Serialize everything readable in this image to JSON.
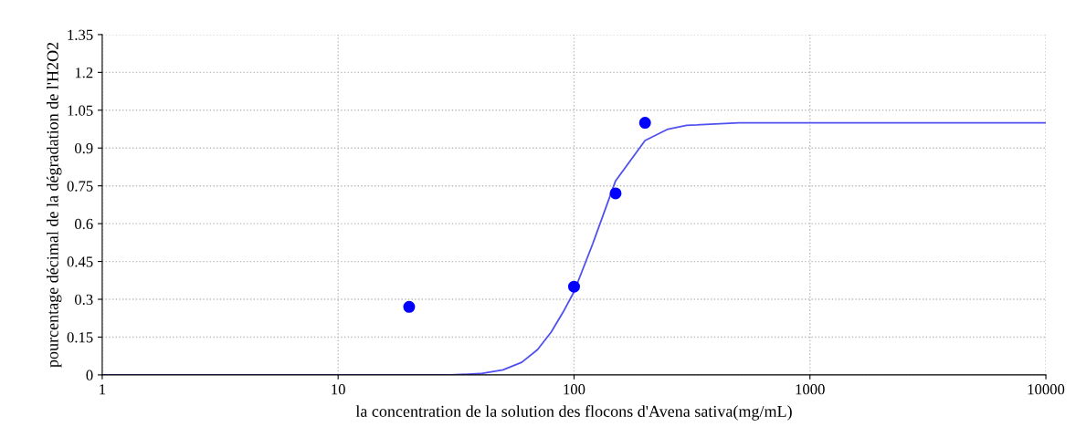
{
  "chart_data": {
    "type": "scatter",
    "xlabel": "la concentration de la solution des flocons d'Avena sativa(mg/mL)",
    "ylabel": "pourcentage décimal de la dégradation de l'H2O2",
    "log": "x",
    "grid": true,
    "xlim": [
      1,
      10000
    ],
    "xticks": [
      1,
      10,
      100,
      1000,
      10000
    ],
    "ylim": [
      0,
      1.35
    ],
    "yticks": [
      0,
      0.15,
      0.3,
      0.45,
      0.6,
      0.75,
      0.9,
      1.05,
      1.2,
      1.35
    ],
    "series": [
      {
        "marker": "circle",
        "color": "#0000ff",
        "x": [
          20,
          100,
          150,
          200
        ],
        "values": [
          0.27,
          0.35,
          0.72,
          1.0
        ]
      },
      {
        "type": "line",
        "color": "#5050f0",
        "marker": "none",
        "line_style": "solid",
        "x": [
          1,
          10,
          30,
          40,
          50,
          60,
          70,
          80,
          90,
          100,
          120,
          150,
          200,
          250,
          300,
          500,
          10000
        ],
        "values": [
          0,
          0,
          0,
          0.005,
          0.02,
          0.05,
          0.1,
          0.17,
          0.25,
          0.33,
          0.52,
          0.77,
          0.93,
          0.975,
          0.99,
          1.0,
          1.0
        ]
      }
    ]
  }
}
